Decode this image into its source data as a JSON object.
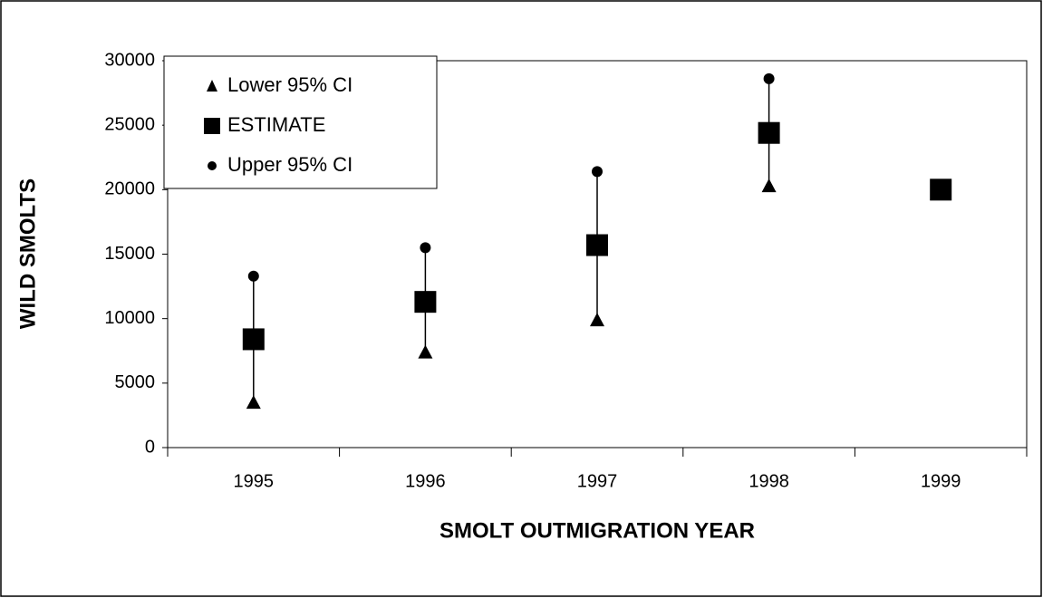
{
  "chart_data": {
    "type": "scatter",
    "x_label": "SMOLT OUTMIGRATION YEAR",
    "y_label": "WILD SMOLTS",
    "categories": [
      "1995",
      "1996",
      "1997",
      "1998",
      "1999"
    ],
    "series": [
      {
        "name": "Lower 95% CI",
        "color": "#000000",
        "marker": "triangle",
        "values": [
          3500,
          7400,
          9900,
          20300,
          null
        ]
      },
      {
        "name": "ESTIMATE",
        "color": "#000000",
        "marker": "square",
        "values": [
          8400,
          11300,
          15700,
          24400,
          20000
        ]
      },
      {
        "name": "Upper 95% CI",
        "color": "#000000",
        "marker": "circle",
        "values": [
          13300,
          15500,
          21400,
          28600,
          null
        ]
      }
    ],
    "ylim": [
      0,
      30000
    ],
    "yticks": [
      0,
      5000,
      10000,
      15000,
      20000,
      25000,
      30000
    ],
    "legend": "top-left",
    "grid": false
  }
}
